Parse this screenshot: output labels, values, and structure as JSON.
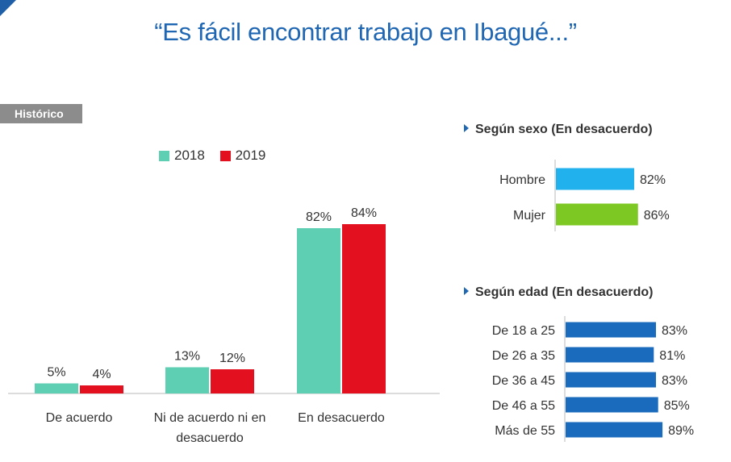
{
  "title": "“Es fácil encontrar trabajo en Ibagué...”",
  "tag": "Histórico",
  "colors": {
    "y2018": "#5ecfb3",
    "y2019": "#e3101f",
    "hombre": "#21b1ec",
    "mujer": "#7dc822",
    "edad": "#1a6bbd",
    "accent": "#1f66b3"
  },
  "chart_data": [
    {
      "type": "bar",
      "categories": [
        "De acuerdo",
        "Ni de acuerdo ni en desacuerdo",
        "En desacuerdo"
      ],
      "category_lines": [
        [
          "De acuerdo"
        ],
        [
          "Ni de acuerdo ni en",
          "desacuerdo"
        ],
        [
          "En desacuerdo"
        ]
      ],
      "series": [
        {
          "name": "2018",
          "values": [
            5,
            13,
            82
          ],
          "labels": [
            "5%",
            "13%",
            "82%"
          ]
        },
        {
          "name": "2019",
          "values": [
            4,
            12,
            84
          ],
          "labels": [
            "4%",
            "12%",
            "84%"
          ]
        }
      ],
      "ylim": [
        0,
        100
      ],
      "legend": "top",
      "grid": false
    },
    {
      "type": "bar",
      "orientation": "horizontal",
      "title": "Según sexo (En desacuerdo)",
      "categories": [
        "Hombre",
        "Mujer"
      ],
      "values": [
        82,
        86
      ],
      "labels": [
        "82%",
        "86%"
      ],
      "xlim": [
        0,
        100
      ]
    },
    {
      "type": "bar",
      "orientation": "horizontal",
      "title": "Según edad (En desacuerdo)",
      "categories": [
        "De 18 a 25",
        "De 26 a 35",
        "De 36 a 45",
        "De 46 a 55",
        "Más de 55"
      ],
      "values": [
        83,
        81,
        83,
        85,
        89
      ],
      "labels": [
        "83%",
        "81%",
        "83%",
        "85%",
        "89%"
      ],
      "xlim": [
        0,
        100
      ]
    }
  ]
}
